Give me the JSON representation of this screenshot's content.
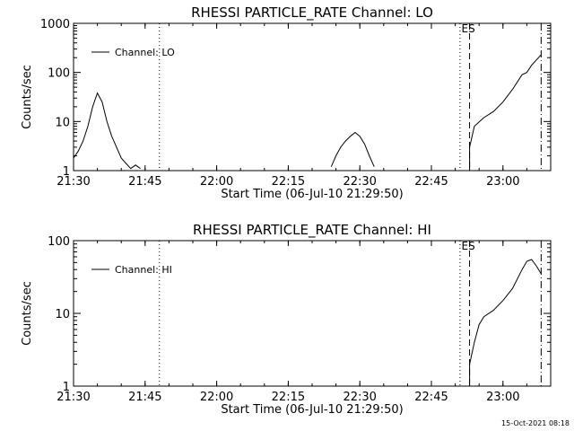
{
  "footer_timestamp": "15-Oct-2021 08:18",
  "chart_data": [
    {
      "type": "line",
      "title": "RHESSI PARTICLE_RATE Channel: LO",
      "xlabel": "Start Time (06-Jul-10 21:29:50)",
      "ylabel": "Counts/sec",
      "y_scale": "log",
      "ylim": [
        1,
        1000
      ],
      "xlim": [
        "21:30",
        "23:10"
      ],
      "x_ticks": [
        "21:30",
        "21:45",
        "22:00",
        "22:15",
        "22:30",
        "22:45",
        "23:00"
      ],
      "y_ticks": [
        "1",
        "10",
        "100",
        "1000"
      ],
      "legend": "top-left",
      "grid": false,
      "vertical_markers": [
        {
          "time": "21:48",
          "style": "dotted",
          "label": ""
        },
        {
          "time": "22:51",
          "style": "dotted",
          "label": ""
        },
        {
          "time": "22:53",
          "style": "dashed",
          "label": "ES"
        },
        {
          "time": "23:08",
          "style": "dashdot",
          "label": ""
        }
      ],
      "series": [
        {
          "name": "Channel: LO",
          "segments": [
            [
              [
                "21:30",
                1.8
              ],
              [
                "21:31",
                2.5
              ],
              [
                "21:32",
                4
              ],
              [
                "21:33",
                8
              ],
              [
                "21:34",
                20
              ],
              [
                "21:35",
                38
              ],
              [
                "21:36",
                25
              ],
              [
                "21:37",
                10
              ],
              [
                "21:38",
                5
              ],
              [
                "21:39",
                3
              ],
              [
                "21:40",
                1.8
              ],
              [
                "21:41",
                1.4
              ],
              [
                "21:42",
                1.1
              ],
              [
                "21:43",
                1.3
              ],
              [
                "21:44",
                1.1
              ]
            ],
            [
              [
                "22:24",
                1.2
              ],
              [
                "22:25",
                2
              ],
              [
                "22:26",
                3
              ],
              [
                "22:27",
                4
              ],
              [
                "22:28",
                5
              ],
              [
                "22:29",
                6
              ],
              [
                "22:30",
                5
              ],
              [
                "22:31",
                3.5
              ],
              [
                "22:32",
                2
              ],
              [
                "22:33",
                1.2
              ]
            ],
            [
              [
                "22:53",
                1
              ],
              [
                "22:53",
                3
              ],
              [
                "22:54",
                8
              ],
              [
                "22:56",
                12
              ],
              [
                "22:58",
                16
              ],
              [
                "23:00",
                25
              ],
              [
                "23:02",
                45
              ],
              [
                "23:04",
                90
              ],
              [
                "23:05",
                100
              ],
              [
                "23:06",
                140
              ],
              [
                "23:08",
                230
              ]
            ]
          ]
        }
      ]
    },
    {
      "type": "line",
      "title": "RHESSI PARTICLE_RATE Channel: HI",
      "xlabel": "Start Time (06-Jul-10 21:29:50)",
      "ylabel": "Counts/sec",
      "y_scale": "log",
      "ylim": [
        1,
        100
      ],
      "xlim": [
        "21:30",
        "23:10"
      ],
      "x_ticks": [
        "21:30",
        "21:45",
        "22:00",
        "22:15",
        "22:30",
        "22:45",
        "23:00"
      ],
      "y_ticks": [
        "1",
        "10",
        "100"
      ],
      "legend": "top-left",
      "grid": false,
      "vertical_markers": [
        {
          "time": "21:48",
          "style": "dotted",
          "label": ""
        },
        {
          "time": "22:51",
          "style": "dotted",
          "label": ""
        },
        {
          "time": "22:53",
          "style": "dashed",
          "label": "ES"
        },
        {
          "time": "23:08",
          "style": "dashdot",
          "label": ""
        }
      ],
      "series": [
        {
          "name": "Channel: HI",
          "segments": [
            [
              [
                "22:53",
                1
              ],
              [
                "22:53",
                2
              ],
              [
                "22:54",
                4
              ],
              [
                "22:55",
                7
              ],
              [
                "22:56",
                9
              ],
              [
                "22:58",
                11
              ],
              [
                "23:00",
                15
              ],
              [
                "23:02",
                22
              ],
              [
                "23:04",
                40
              ],
              [
                "23:05",
                52
              ],
              [
                "23:06",
                55
              ],
              [
                "23:07",
                45
              ],
              [
                "23:08",
                35
              ]
            ]
          ]
        }
      ]
    }
  ]
}
